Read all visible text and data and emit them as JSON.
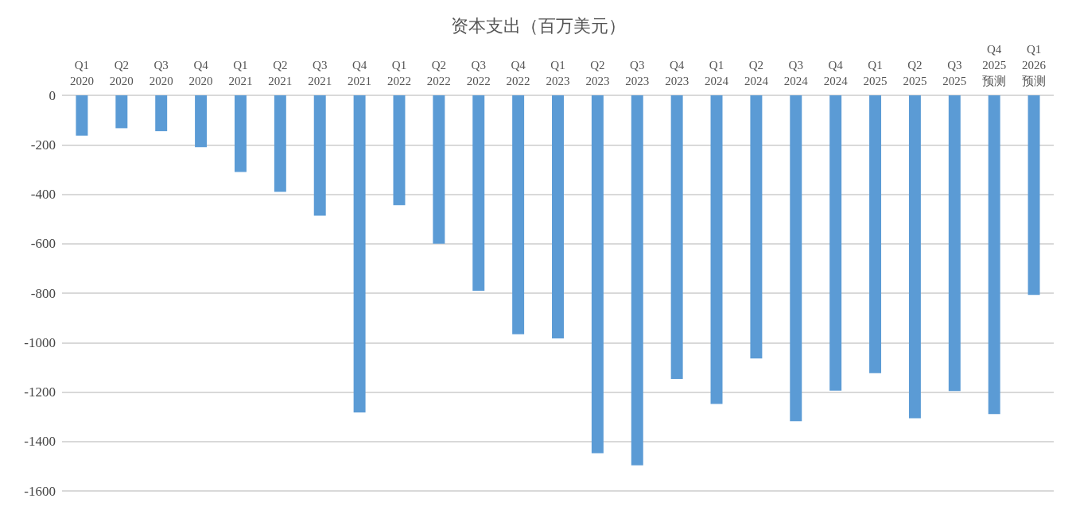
{
  "chart_data": {
    "type": "bar",
    "title": "资本支出（百万美元）",
    "categories": [
      "Q1\n2020",
      "Q2\n2020",
      "Q3\n2020",
      "Q4\n2020",
      "Q1\n2021",
      "Q2\n2021",
      "Q3\n2021",
      "Q4\n2021",
      "Q1\n2022",
      "Q2\n2022",
      "Q3\n2022",
      "Q4\n2022",
      "Q1\n2023",
      "Q2\n2023",
      "Q3\n2023",
      "Q4\n2023",
      "Q1\n2024",
      "Q2\n2024",
      "Q3\n2024",
      "Q4\n2024",
      "Q1\n2025",
      "Q2\n2025",
      "Q3\n2025",
      "Q4\n2025\n预测",
      "Q1\n2026\n预测"
    ],
    "values": [
      -163,
      -133,
      -145,
      -210,
      -310,
      -390,
      -487,
      -1283,
      -444,
      -600,
      -790,
      -966,
      -983,
      -1447,
      -1496,
      -1147,
      -1248,
      -1064,
      -1318,
      -1194,
      -1124,
      -1306,
      -1196,
      -1289,
      -807
    ],
    "color": "#5b9bd5",
    "ylim": [
      -1600,
      0
    ],
    "yticks": [
      -1600,
      -1400,
      -1200,
      -1000,
      -800,
      -600,
      -400,
      -200,
      0
    ],
    "grid": "y"
  }
}
